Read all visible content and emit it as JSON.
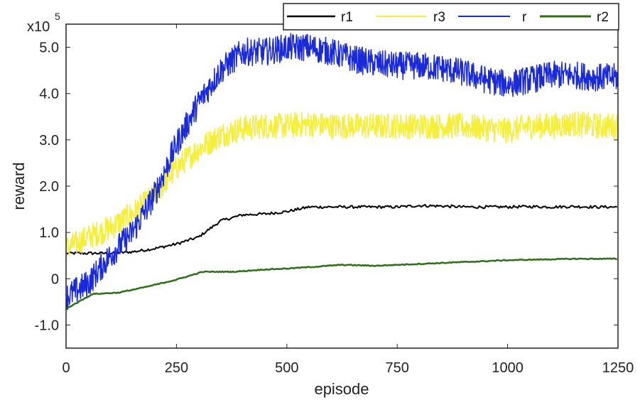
{
  "chart_data": {
    "type": "line",
    "xlabel": "episode",
    "ylabel": "reward",
    "y_multiplier_base": "x10",
    "y_multiplier_exp": "5",
    "xlim": [
      0,
      1250
    ],
    "ylim": [
      -1.5,
      5.5
    ],
    "xticks": [
      0,
      250,
      500,
      750,
      1000,
      1250
    ],
    "xtick_labels": [
      "0",
      "250",
      "500",
      "750",
      "1000",
      "1250"
    ],
    "yticks": [
      -1.0,
      0,
      1.0,
      2.0,
      3.0,
      4.0,
      5.0
    ],
    "ytick_labels": [
      "-1.0",
      "0",
      "1.0",
      "2.0",
      "3.0",
      "4.0",
      "5.0"
    ],
    "grid": false,
    "legend_position": "top-right",
    "series": [
      {
        "name": "r1",
        "color": "#000000",
        "noise": 0.03,
        "width": 2,
        "x": [
          0,
          50,
          100,
          150,
          200,
          250,
          300,
          350,
          400,
          450,
          500,
          550,
          600,
          650,
          700,
          750,
          800,
          850,
          900,
          950,
          1000,
          1050,
          1100,
          1150,
          1200,
          1250
        ],
        "y": [
          0.55,
          0.55,
          0.55,
          0.58,
          0.65,
          0.75,
          0.9,
          1.25,
          1.38,
          1.4,
          1.45,
          1.55,
          1.55,
          1.55,
          1.55,
          1.55,
          1.58,
          1.57,
          1.55,
          1.55,
          1.55,
          1.56,
          1.55,
          1.56,
          1.55,
          1.55
        ]
      },
      {
        "name": "r3",
        "color": "#f5ef3c",
        "noise": 0.28,
        "width": 1.5,
        "x": [
          0,
          50,
          100,
          150,
          200,
          250,
          300,
          350,
          400,
          450,
          500,
          550,
          600,
          650,
          700,
          750,
          800,
          850,
          900,
          950,
          1000,
          1050,
          1100,
          1150,
          1200,
          1250
        ],
        "y": [
          0.65,
          0.9,
          1.1,
          1.4,
          1.8,
          2.4,
          2.8,
          3.1,
          3.25,
          3.3,
          3.3,
          3.35,
          3.3,
          3.3,
          3.3,
          3.3,
          3.3,
          3.3,
          3.3,
          3.25,
          3.2,
          3.3,
          3.3,
          3.35,
          3.3,
          3.3
        ]
      },
      {
        "name": "r",
        "color": "#1a2ad8",
        "noise": 0.3,
        "width": 1.5,
        "x": [
          0,
          50,
          100,
          150,
          200,
          250,
          300,
          350,
          400,
          450,
          500,
          550,
          600,
          650,
          700,
          750,
          800,
          850,
          900,
          950,
          1000,
          1050,
          1100,
          1150,
          1200,
          1250
        ],
        "y": [
          -0.4,
          -0.1,
          0.5,
          1.0,
          1.8,
          2.9,
          3.8,
          4.5,
          4.9,
          4.9,
          5.0,
          5.0,
          4.9,
          4.75,
          4.65,
          4.6,
          4.6,
          4.55,
          4.45,
          4.3,
          4.2,
          4.3,
          4.4,
          4.4,
          4.35,
          4.35
        ]
      },
      {
        "name": "r2",
        "color": "#2e6e16",
        "noise": 0.01,
        "width": 2.5,
        "x": [
          0,
          60,
          120,
          180,
          250,
          310,
          380,
          450,
          500,
          550,
          625,
          700,
          750,
          800,
          850,
          900,
          950,
          1000,
          1050,
          1100,
          1150,
          1200,
          1250
        ],
        "y": [
          -0.65,
          -0.33,
          -0.3,
          -0.18,
          -0.02,
          0.15,
          0.15,
          0.2,
          0.22,
          0.25,
          0.3,
          0.28,
          0.3,
          0.32,
          0.34,
          0.36,
          0.38,
          0.4,
          0.41,
          0.42,
          0.43,
          0.43,
          0.43
        ]
      }
    ]
  }
}
